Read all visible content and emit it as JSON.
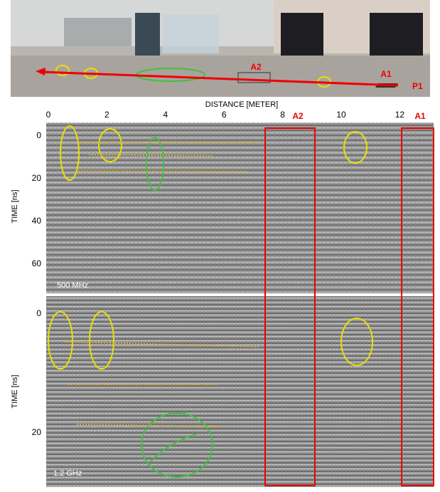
{
  "photo": {
    "labels": {
      "a2": "A2",
      "a1": "A1",
      "p1": "P1"
    }
  },
  "x_axis": {
    "title": "DISTANCE [METER]",
    "ticks": [
      0,
      2,
      4,
      6,
      8,
      10,
      12
    ]
  },
  "anomalies": [
    "A2",
    "A1"
  ],
  "panels": [
    {
      "label": "500 MHz",
      "y_title": "TIME [ns]",
      "yticks": [
        0,
        20,
        40,
        60
      ]
    },
    {
      "label": "1.2 GHz",
      "y_title": "TIME [ns]",
      "yticks": [
        0,
        20
      ]
    }
  ]
}
